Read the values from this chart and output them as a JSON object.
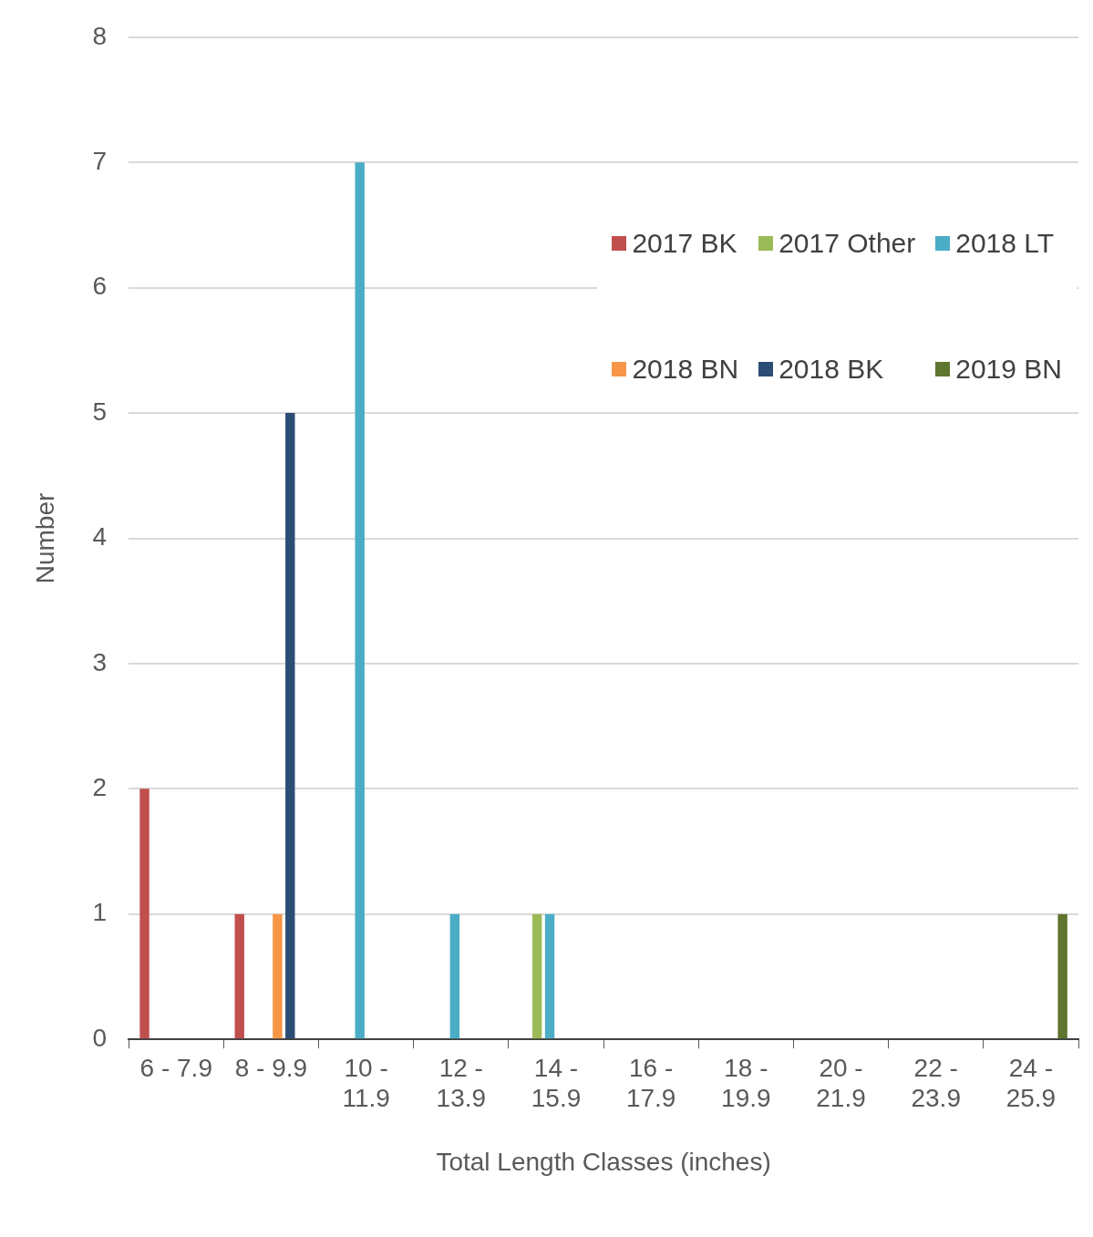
{
  "chart_data": {
    "type": "bar",
    "xlabel": "Total Length Classes (inches)",
    "ylabel": "Number",
    "categories": [
      "6 - 7.9",
      "8 - 9.9",
      "10 - 11.9",
      "12 - 13.9",
      "14 - 15.9",
      "16 - 17.9",
      "18 - 19.9",
      "20 - 21.9",
      "22 - 23.9",
      "24 - 25.9"
    ],
    "series": [
      {
        "name": "2017 BK",
        "color": "#c0504d",
        "values": [
          2,
          1,
          0,
          0,
          0,
          0,
          0,
          0,
          0,
          0
        ]
      },
      {
        "name": "2017 Other",
        "color": "#9bbb59",
        "values": [
          0,
          0,
          0,
          0,
          1,
          0,
          0,
          0,
          0,
          0
        ]
      },
      {
        "name": "2018 LT",
        "color": "#4bacc6",
        "values": [
          0,
          0,
          7,
          1,
          1,
          0,
          0,
          0,
          0,
          0
        ]
      },
      {
        "name": "2018 BN",
        "color": "#f79646",
        "values": [
          0,
          1,
          0,
          0,
          0,
          0,
          0,
          0,
          0,
          0
        ]
      },
      {
        "name": "2018 BK",
        "color": "#2c4d75",
        "values": [
          0,
          5,
          0,
          0,
          0,
          0,
          0,
          0,
          0,
          0
        ]
      },
      {
        "name": "2019 BN",
        "color": "#5f7530",
        "values": [
          0,
          0,
          0,
          0,
          0,
          0,
          0,
          0,
          0,
          1
        ]
      }
    ],
    "ylim": [
      0,
      8
    ],
    "yticks": [
      0,
      1,
      2,
      3,
      4,
      5,
      6,
      7,
      8
    ],
    "grid": "y",
    "legend": "top right"
  }
}
